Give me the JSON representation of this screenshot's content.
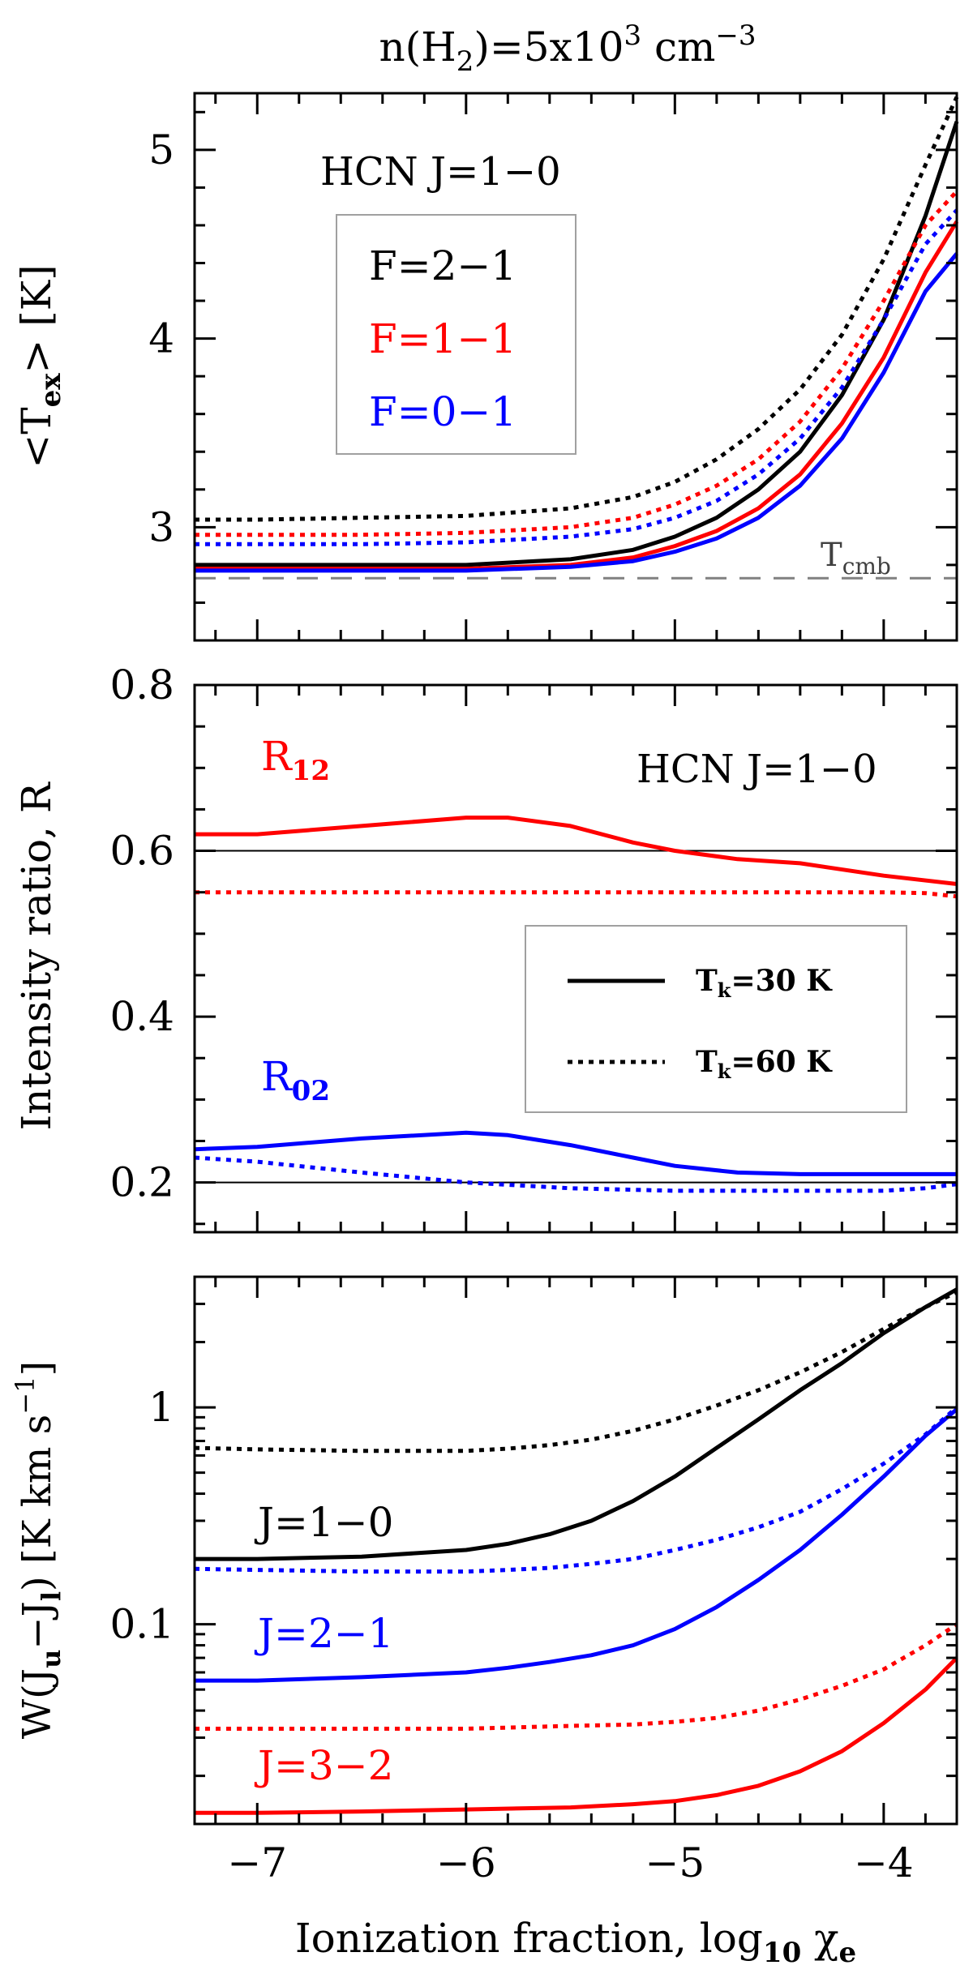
{
  "figure_title_parts": [
    "n(H",
    "2",
    ")=5x10",
    "3",
    " cm",
    "−3"
  ],
  "shared_x": {
    "label_parts": [
      "Ionization fraction, log",
      "10",
      " χ",
      "e"
    ],
    "xlim": [
      -7.3,
      -3.65
    ],
    "ticks": [
      -7,
      -6,
      -5,
      -4
    ],
    "tick_labels": [
      "−7",
      "−6",
      "−5",
      "−4"
    ]
  },
  "chart_data": [
    {
      "id": "top",
      "type": "line",
      "title": "HCN J=1−0",
      "ylabel_parts": [
        "<T",
        "ex",
        "> [K]"
      ],
      "xlabel": "Ionization fraction, log10 χe",
      "ylim": [
        2.4,
        5.3
      ],
      "yticks": [
        3,
        4,
        5
      ],
      "ytick_labels": [
        "3",
        "4",
        "5"
      ],
      "legend": [
        "F=2−1",
        "F=1−1",
        "F=0−1"
      ],
      "reference_label_parts": [
        "T",
        "cmb"
      ],
      "reference_value": 2.73,
      "series": [
        {
          "name": "F=2−1",
          "style": "solid",
          "color": "#000000",
          "x": [
            -7.3,
            -7,
            -6.5,
            -6,
            -5.5,
            -5.2,
            -5,
            -4.8,
            -4.6,
            -4.4,
            -4.2,
            -4,
            -3.8,
            -3.65
          ],
          "values": [
            2.8,
            2.8,
            2.8,
            2.8,
            2.83,
            2.88,
            2.95,
            3.05,
            3.2,
            3.4,
            3.7,
            4.1,
            4.65,
            5.15
          ]
        },
        {
          "name": "F=1−1",
          "style": "solid",
          "color": "#ff0000",
          "x": [
            -7.3,
            -7,
            -6.5,
            -6,
            -5.5,
            -5.2,
            -5,
            -4.8,
            -4.6,
            -4.4,
            -4.2,
            -4,
            -3.8,
            -3.65
          ],
          "values": [
            2.78,
            2.78,
            2.78,
            2.78,
            2.8,
            2.84,
            2.9,
            2.98,
            3.1,
            3.28,
            3.55,
            3.9,
            4.35,
            4.62
          ]
        },
        {
          "name": "F=0−1",
          "style": "solid",
          "color": "#0000ff",
          "x": [
            -7.3,
            -7,
            -6.5,
            -6,
            -5.5,
            -5.2,
            -5,
            -4.8,
            -4.6,
            -4.4,
            -4.2,
            -4,
            -3.8,
            -3.65
          ],
          "values": [
            2.77,
            2.77,
            2.77,
            2.77,
            2.79,
            2.82,
            2.87,
            2.94,
            3.05,
            3.22,
            3.47,
            3.82,
            4.25,
            4.45
          ]
        },
        {
          "name": "F=2−1 (60 K)",
          "style": "dotted",
          "color": "#000000",
          "x": [
            -7.3,
            -7,
            -6.5,
            -6,
            -5.5,
            -5.2,
            -5,
            -4.8,
            -4.6,
            -4.4,
            -4.2,
            -4,
            -3.8,
            -3.65
          ],
          "values": [
            3.04,
            3.04,
            3.05,
            3.06,
            3.1,
            3.16,
            3.24,
            3.36,
            3.52,
            3.73,
            4.02,
            4.42,
            4.92,
            5.28
          ]
        },
        {
          "name": "F=1−1 (60 K)",
          "style": "dotted",
          "color": "#ff0000",
          "x": [
            -7.3,
            -7,
            -6.5,
            -6,
            -5.5,
            -5.2,
            -5,
            -4.8,
            -4.6,
            -4.4,
            -4.2,
            -4,
            -3.8,
            -3.65
          ],
          "values": [
            2.96,
            2.96,
            2.96,
            2.97,
            3.0,
            3.05,
            3.12,
            3.22,
            3.36,
            3.56,
            3.84,
            4.2,
            4.6,
            4.78
          ]
        },
        {
          "name": "F=0−1 (60 K)",
          "style": "dotted",
          "color": "#0000ff",
          "x": [
            -7.3,
            -7,
            -6.5,
            -6,
            -5.5,
            -5.2,
            -5,
            -4.8,
            -4.6,
            -4.4,
            -4.2,
            -4,
            -3.8,
            -3.65
          ],
          "values": [
            2.91,
            2.91,
            2.91,
            2.92,
            2.95,
            2.99,
            3.05,
            3.14,
            3.28,
            3.47,
            3.74,
            4.1,
            4.5,
            4.68
          ]
        }
      ]
    },
    {
      "id": "middle",
      "type": "line",
      "title": "HCN J=1−0",
      "ylabel": "Intensity ratio, R",
      "ylim": [
        0.14,
        0.8
      ],
      "yticks": [
        0.2,
        0.4,
        0.6,
        0.8
      ],
      "ytick_labels": [
        "0.2",
        "0.4",
        "0.6",
        "0.8"
      ],
      "reference_lines": [
        0.6,
        0.2
      ],
      "series_labels": [
        [
          "R",
          "12"
        ],
        [
          "R",
          "02"
        ]
      ],
      "legend": [
        "T",
        "k",
        "=30 K",
        "T",
        "k",
        "=60 K"
      ],
      "series": [
        {
          "name": "R12 Tk=30 K",
          "style": "solid",
          "color": "#ff0000",
          "x": [
            -7.3,
            -7,
            -6.5,
            -6,
            -5.8,
            -5.5,
            -5.2,
            -5,
            -4.7,
            -4.4,
            -4,
            -3.65
          ],
          "values": [
            0.62,
            0.62,
            0.63,
            0.64,
            0.64,
            0.63,
            0.61,
            0.6,
            0.59,
            0.585,
            0.57,
            0.56
          ]
        },
        {
          "name": "R12 Tk=60 K",
          "style": "dotted",
          "color": "#ff0000",
          "x": [
            -7.3,
            -7,
            -6.5,
            -6,
            -5.5,
            -5,
            -4.5,
            -4,
            -3.8,
            -3.65
          ],
          "values": [
            0.55,
            0.55,
            0.55,
            0.55,
            0.55,
            0.55,
            0.55,
            0.55,
            0.549,
            0.545
          ]
        },
        {
          "name": "R02 Tk=30 K",
          "style": "solid",
          "color": "#0000ff",
          "x": [
            -7.3,
            -7,
            -6.5,
            -6,
            -5.8,
            -5.5,
            -5.2,
            -5,
            -4.7,
            -4.4,
            -4,
            -3.65
          ],
          "values": [
            0.24,
            0.243,
            0.253,
            0.26,
            0.257,
            0.245,
            0.23,
            0.22,
            0.212,
            0.21,
            0.21,
            0.21
          ]
        },
        {
          "name": "R02 Tk=60 K",
          "style": "dotted",
          "color": "#0000ff",
          "x": [
            -7.3,
            -7,
            -6.5,
            -6,
            -5.5,
            -5,
            -4.5,
            -4,
            -3.8,
            -3.65
          ],
          "values": [
            0.23,
            0.225,
            0.212,
            0.2,
            0.193,
            0.19,
            0.19,
            0.19,
            0.193,
            0.198
          ]
        }
      ]
    },
    {
      "id": "bottom",
      "type": "line",
      "yscale": "log",
      "ylabel_parts": [
        "W(J",
        "u",
        "−J",
        "l",
        ") [K km s",
        "−1",
        "]"
      ],
      "ylim": [
        0.012,
        4.0
      ],
      "yticks": [
        0.1,
        1
      ],
      "ytick_labels": [
        "0.1",
        "1"
      ],
      "series_labels": [
        "J=1−0",
        "J=2−1",
        "J=3−2"
      ],
      "series": [
        {
          "name": "J=1−0 Tk=30 K",
          "style": "solid",
          "color": "#000000",
          "x": [
            -7.3,
            -7,
            -6.5,
            -6,
            -5.8,
            -5.6,
            -5.4,
            -5.2,
            -5,
            -4.8,
            -4.6,
            -4.4,
            -4.2,
            -4,
            -3.8,
            -3.65
          ],
          "values": [
            0.2,
            0.2,
            0.205,
            0.22,
            0.235,
            0.26,
            0.3,
            0.37,
            0.48,
            0.65,
            0.88,
            1.2,
            1.6,
            2.2,
            2.9,
            3.5
          ]
        },
        {
          "name": "J=1−0 Tk=60 K",
          "style": "dotted",
          "color": "#000000",
          "x": [
            -7.3,
            -7,
            -6.5,
            -6,
            -5.8,
            -5.6,
            -5.4,
            -5.2,
            -5,
            -4.8,
            -4.6,
            -4.4,
            -4.2,
            -4,
            -3.8,
            -3.65
          ],
          "values": [
            0.65,
            0.64,
            0.63,
            0.63,
            0.645,
            0.67,
            0.71,
            0.78,
            0.88,
            1.02,
            1.2,
            1.45,
            1.8,
            2.3,
            2.9,
            3.4
          ]
        },
        {
          "name": "J=2−1 Tk=30 K",
          "style": "solid",
          "color": "#0000ff",
          "x": [
            -7.3,
            -7,
            -6.5,
            -6,
            -5.8,
            -5.6,
            -5.4,
            -5.2,
            -5,
            -4.8,
            -4.6,
            -4.4,
            -4.2,
            -4,
            -3.8,
            -3.65
          ],
          "values": [
            0.055,
            0.055,
            0.057,
            0.06,
            0.063,
            0.067,
            0.072,
            0.08,
            0.095,
            0.12,
            0.16,
            0.22,
            0.32,
            0.48,
            0.74,
            0.98
          ]
        },
        {
          "name": "J=2−1 Tk=60 K",
          "style": "dotted",
          "color": "#0000ff",
          "x": [
            -7.3,
            -7,
            -6.5,
            -6,
            -5.8,
            -5.6,
            -5.4,
            -5.2,
            -5,
            -4.8,
            -4.6,
            -4.4,
            -4.2,
            -4,
            -3.8,
            -3.65
          ],
          "values": [
            0.18,
            0.178,
            0.175,
            0.175,
            0.178,
            0.182,
            0.19,
            0.2,
            0.22,
            0.245,
            0.28,
            0.33,
            0.42,
            0.55,
            0.75,
            1.0
          ]
        },
        {
          "name": "J=3−2 Tk=30 K",
          "style": "solid",
          "color": "#ff0000",
          "x": [
            -7.3,
            -7,
            -6.5,
            -6,
            -5.5,
            -5.2,
            -5,
            -4.8,
            -4.6,
            -4.4,
            -4.2,
            -4,
            -3.8,
            -3.65
          ],
          "values": [
            0.0135,
            0.0135,
            0.0137,
            0.014,
            0.0143,
            0.0148,
            0.0153,
            0.0163,
            0.018,
            0.021,
            0.026,
            0.035,
            0.05,
            0.07
          ]
        },
        {
          "name": "J=3−2 Tk=60 K",
          "style": "dotted",
          "color": "#ff0000",
          "x": [
            -7.3,
            -7,
            -6.5,
            -6,
            -5.5,
            -5.2,
            -5,
            -4.8,
            -4.6,
            -4.4,
            -4.2,
            -4,
            -3.8,
            -3.65
          ],
          "values": [
            0.033,
            0.033,
            0.033,
            0.033,
            0.034,
            0.0345,
            0.0355,
            0.037,
            0.04,
            0.045,
            0.052,
            0.062,
            0.08,
            0.1
          ]
        }
      ]
    }
  ]
}
